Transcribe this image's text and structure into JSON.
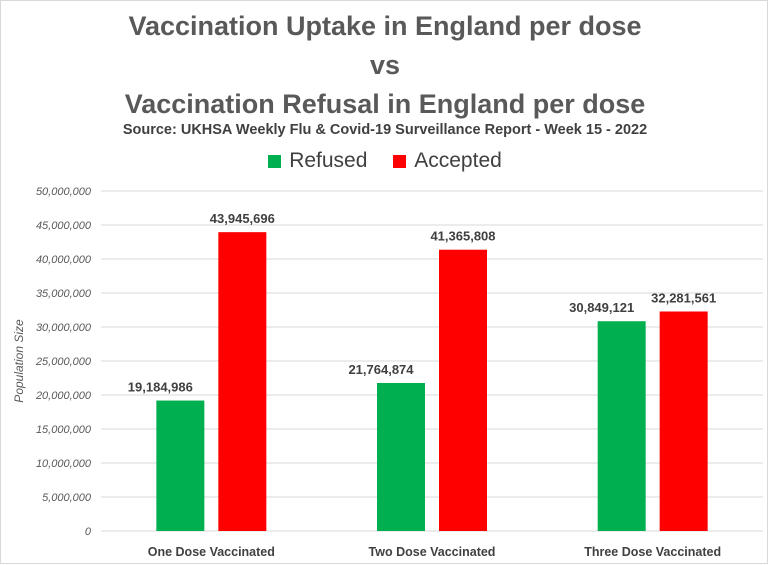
{
  "chart_data": {
    "type": "bar",
    "title_lines": [
      "Vaccination Uptake in England per dose",
      "vs",
      "Vaccination Refusal in England per dose"
    ],
    "subtitle": "Source: UKHSA Weekly Flu & Covid-19 Surveillance Report - Week 15 - 2022",
    "categories": [
      "One Dose Vaccinated",
      "Two Dose Vaccinated",
      "Three Dose Vaccinated"
    ],
    "series": [
      {
        "name": "Refused",
        "color": "#00b050",
        "values": [
          19184986,
          21764874,
          30849121
        ],
        "labels": [
          "19,184,986",
          "21,764,874",
          "30,849,121"
        ]
      },
      {
        "name": "Accepted",
        "color": "#ff0000",
        "values": [
          43945696,
          41365808,
          32281561
        ],
        "labels": [
          "43,945,696",
          "41,365,808",
          "32,281,561"
        ]
      }
    ],
    "xlabel": "",
    "ylabel": "Population Size",
    "ylim": [
      0,
      50000000
    ],
    "yticks": [
      0,
      5000000,
      10000000,
      15000000,
      20000000,
      25000000,
      30000000,
      35000000,
      40000000,
      45000000,
      50000000
    ],
    "ytick_labels": [
      "0",
      "5,000,000",
      "10,000,000",
      "15,000,000",
      "20,000,000",
      "25,000,000",
      "30,000,000",
      "35,000,000",
      "40,000,000",
      "45,000,000",
      "50,000,000"
    ],
    "grid": true,
    "legend_position": "top"
  }
}
